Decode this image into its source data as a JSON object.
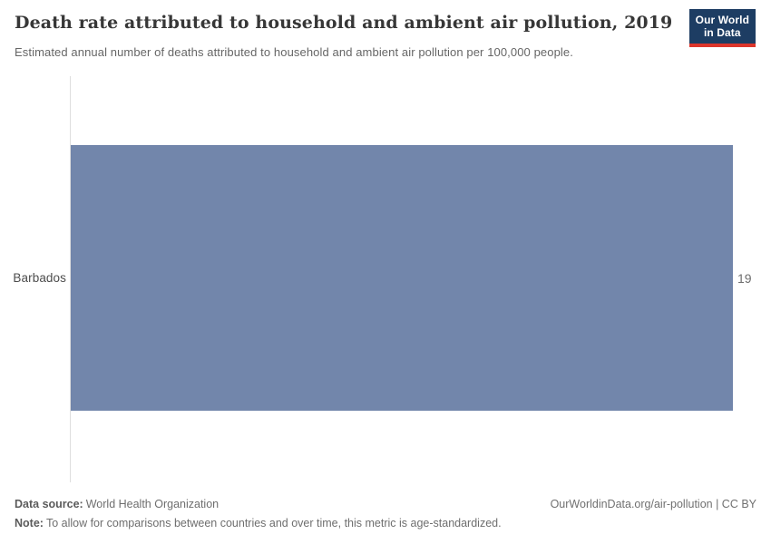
{
  "header": {
    "title": "Death rate attributed to household and ambient air pollution, 2019",
    "subtitle": "Estimated annual number of deaths attributed to household and ambient air pollution per 100,000 people.",
    "logo": {
      "line1": "Our World",
      "line2": "in Data"
    }
  },
  "chart_data": {
    "type": "bar",
    "orientation": "horizontal",
    "title": "Death rate attributed to household and ambient air pollution, 2019",
    "subtitle": "Estimated annual number of deaths attributed to household and ambient air pollution per 100,000 people.",
    "year": "2019",
    "categories": [
      "Barbados"
    ],
    "values": [
      19
    ],
    "value_labels": [
      "19"
    ],
    "xlim": [
      0,
      19
    ],
    "grid": false,
    "legend": false,
    "bar_color": "#7286ab"
  },
  "footer": {
    "data_source_label": "Data source:",
    "data_source_text": "World Health Organization",
    "note_label": "Note:",
    "note_text": "To allow for comparisons between countries and over time, this metric is age-standardized.",
    "link_text": "OurWorldinData.org/air-pollution | CC BY"
  },
  "colors": {
    "bar": "#7286ab",
    "axis_line": "#dedede",
    "logo_background": "#1d3d63",
    "logo_stripe": "#dc352b",
    "title_text": "#373737",
    "subtitle_text": "#666666"
  }
}
